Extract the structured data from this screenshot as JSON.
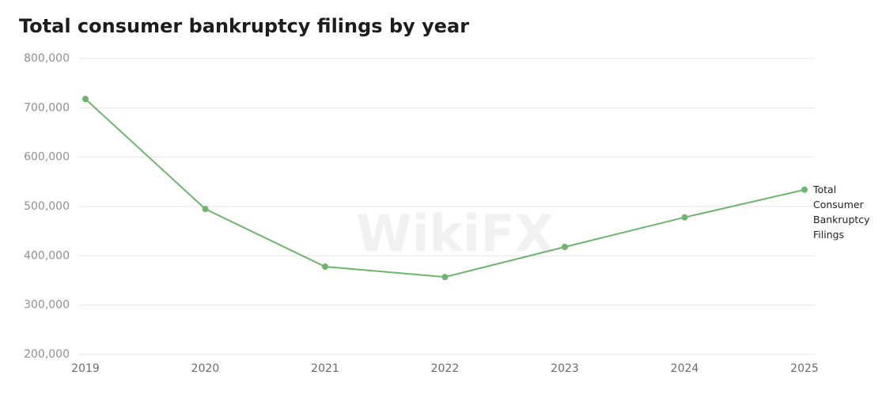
{
  "chart_data": {
    "type": "line",
    "title": "Total consumer bankruptcy filings by year",
    "watermark": "WikiFX",
    "categories": [
      "2019",
      "2020",
      "2021",
      "2022",
      "2023",
      "2024",
      "2025"
    ],
    "series": [
      {
        "name": "Total Consumer Bankruptcy Filings",
        "color": "#6db56d",
        "values": [
          718000,
          495000,
          378000,
          357000,
          418000,
          478000,
          534000
        ]
      }
    ],
    "ylim": [
      200000,
      800000
    ],
    "yticks": [
      {
        "value": 200000,
        "label": "200,000"
      },
      {
        "value": 300000,
        "label": "300,000"
      },
      {
        "value": 400000,
        "label": "400,000"
      },
      {
        "value": 500000,
        "label": "500,000"
      },
      {
        "value": 600000,
        "label": "600,000"
      },
      {
        "value": 700000,
        "label": "700,000"
      },
      {
        "value": 800000,
        "label": "800,000"
      }
    ],
    "grid": true
  }
}
